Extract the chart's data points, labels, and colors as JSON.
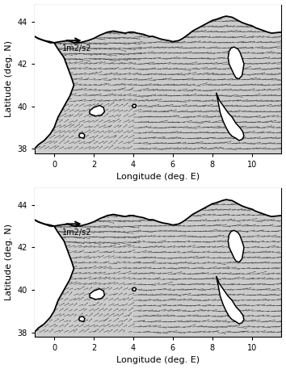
{
  "lon_min": -1.0,
  "lon_max": 11.5,
  "lat_min": 37.8,
  "lat_max": 44.8,
  "xlabel": "Longitude (deg. E)",
  "ylabel": "Latitude (deg. N)",
  "xticks": [
    0,
    2,
    4,
    6,
    8,
    10
  ],
  "yticks": [
    38,
    40,
    42,
    44
  ],
  "scale_label": "1m2/s2",
  "sea_color": "#c8c8c8",
  "land_color": "white",
  "figsize": [
    3.54,
    4.57
  ],
  "dpi": 100,
  "coast_north": {
    "x": [
      -1.0,
      -0.8,
      -0.5,
      -0.2,
      0.0,
      0.3,
      0.7,
      1.0,
      1.3,
      1.7,
      2.0,
      2.3,
      2.7,
      3.0,
      3.3,
      3.6,
      3.8,
      4.0,
      4.2,
      4.5,
      4.8,
      5.0,
      5.3,
      5.5,
      5.8,
      6.0,
      6.3,
      6.5,
      6.8,
      7.0,
      7.2,
      7.5,
      7.7,
      8.0,
      8.2,
      8.5,
      8.7,
      9.0,
      9.2,
      9.5,
      9.8,
      10.0,
      10.2,
      10.5,
      10.8,
      11.0,
      11.5
    ],
    "y": [
      43.3,
      43.2,
      43.1,
      43.05,
      43.0,
      43.05,
      43.1,
      43.0,
      43.0,
      43.1,
      43.2,
      43.35,
      43.5,
      43.55,
      43.5,
      43.45,
      43.5,
      43.5,
      43.45,
      43.4,
      43.3,
      43.3,
      43.2,
      43.15,
      43.1,
      43.05,
      43.1,
      43.2,
      43.4,
      43.55,
      43.65,
      43.8,
      43.9,
      44.05,
      44.1,
      44.2,
      44.25,
      44.2,
      44.1,
      43.95,
      43.85,
      43.8,
      43.7,
      43.6,
      43.5,
      43.45,
      43.5
    ]
  },
  "coast_west": {
    "x": [
      -1.0,
      -0.8,
      -0.5,
      -0.2,
      0.0,
      0.2,
      0.5,
      0.7,
      0.9,
      1.0,
      0.8,
      0.5,
      0.2,
      0.0,
      -0.2,
      -0.5,
      -0.8,
      -1.0
    ],
    "y": [
      43.3,
      43.2,
      43.1,
      43.0,
      43.0,
      42.7,
      42.3,
      41.8,
      41.3,
      41.0,
      40.5,
      40.0,
      39.5,
      39.0,
      38.7,
      38.4,
      38.2,
      38.0
    ]
  },
  "corsica": {
    "x": [
      9.2,
      9.35,
      9.5,
      9.55,
      9.6,
      9.5,
      9.4,
      9.3,
      9.1,
      8.95,
      8.85,
      8.8,
      8.85,
      9.0,
      9.1,
      9.2
    ],
    "y": [
      41.35,
      41.3,
      41.45,
      41.7,
      42.0,
      42.3,
      42.55,
      42.7,
      42.8,
      42.75,
      42.6,
      42.3,
      42.0,
      41.7,
      41.5,
      41.35
    ]
  },
  "sardinia": {
    "x": [
      8.2,
      8.35,
      8.5,
      8.65,
      8.8,
      9.0,
      9.2,
      9.4,
      9.55,
      9.6,
      9.5,
      9.35,
      9.2,
      9.0,
      8.85,
      8.7,
      8.55,
      8.4,
      8.3,
      8.2
    ],
    "y": [
      40.65,
      40.3,
      40.1,
      39.9,
      39.7,
      39.5,
      39.2,
      39.0,
      38.8,
      38.6,
      38.45,
      38.4,
      38.5,
      38.6,
      38.75,
      39.0,
      39.3,
      39.7,
      40.2,
      40.65
    ]
  },
  "island_minorca": {
    "x": [
      1.8,
      2.1,
      2.4,
      2.55,
      2.5,
      2.3,
      2.0,
      1.8,
      1.8
    ],
    "y": [
      39.65,
      39.55,
      39.6,
      39.75,
      39.95,
      40.05,
      39.95,
      39.8,
      39.65
    ]
  },
  "island_small1": {
    "x": [
      4.0,
      4.1,
      4.15,
      4.1,
      4.0,
      3.95,
      4.0
    ],
    "y": [
      39.95,
      39.95,
      40.05,
      40.1,
      40.1,
      40.0,
      39.95
    ]
  },
  "island_small2": {
    "x": [
      1.3,
      1.5,
      1.55,
      1.45,
      1.3,
      1.25,
      1.3
    ],
    "y": [
      38.55,
      38.5,
      38.65,
      38.75,
      38.72,
      38.62,
      38.55
    ]
  }
}
